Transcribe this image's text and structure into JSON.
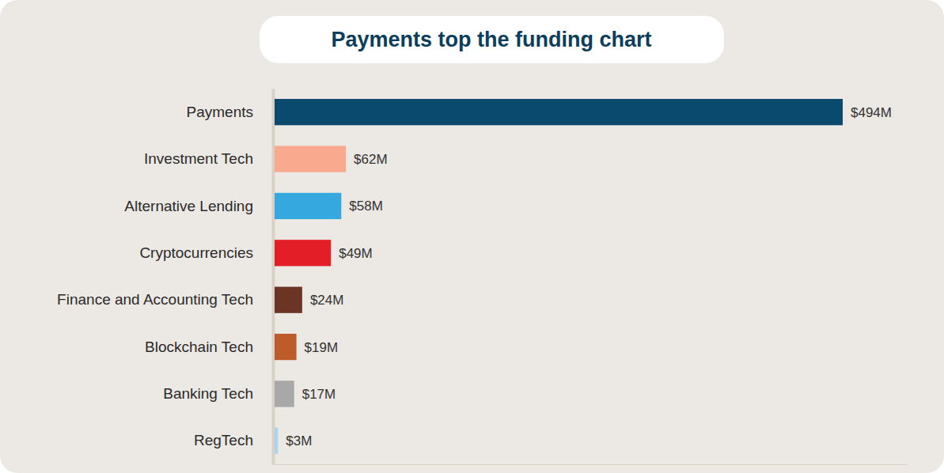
{
  "chart_data": {
    "type": "bar",
    "title": "Payments top the funding chart",
    "orientation": "horizontal",
    "categories": [
      "Payments",
      "Investment Tech",
      "Alternative Lending",
      "Cryptocurrencies",
      "Finance and Accounting Tech",
      "Blockchain Tech",
      "Banking Tech",
      "RegTech"
    ],
    "values": [
      494,
      62,
      58,
      49,
      24,
      19,
      17,
      3
    ],
    "value_labels": [
      "$494M",
      "$62M",
      "$58M",
      "$49M",
      "$24M",
      "$19M",
      "$17M",
      "$3M"
    ],
    "colors": [
      "#0b4a6f",
      "#f9a98e",
      "#35a8e0",
      "#e31e26",
      "#6b3526",
      "#bd5b2a",
      "#a8a8a8",
      "#a9d6ef"
    ],
    "xlim": [
      0,
      550
    ],
    "data_labels": true,
    "tick_labels": "y",
    "grid": false
  }
}
